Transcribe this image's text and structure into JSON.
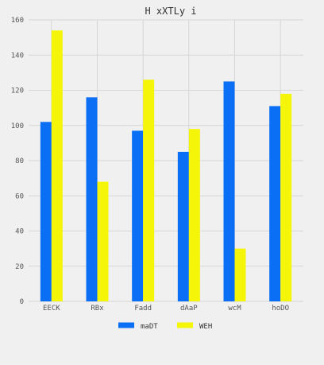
{
  "chart_data": {
    "type": "bar",
    "title": "H xXTLy i",
    "xlabel": "",
    "ylabel": "",
    "categories": [
      "EECK",
      "RBx",
      "Fadd",
      "dAaP",
      "wcM",
      "hoDO"
    ],
    "series": [
      {
        "name": "maDT",
        "color": "#0a6ff5",
        "values": [
          102,
          116,
          97,
          85,
          125,
          111
        ]
      },
      {
        "name": "WEH",
        "color": "#f5f50a",
        "values": [
          154,
          68,
          126,
          98,
          30,
          118
        ]
      }
    ],
    "ylim": [
      0,
      160
    ],
    "yticks": [
      0,
      20,
      40,
      60,
      80,
      100,
      120,
      140,
      160
    ],
    "grid": true,
    "legend_position": "bottom-center"
  }
}
